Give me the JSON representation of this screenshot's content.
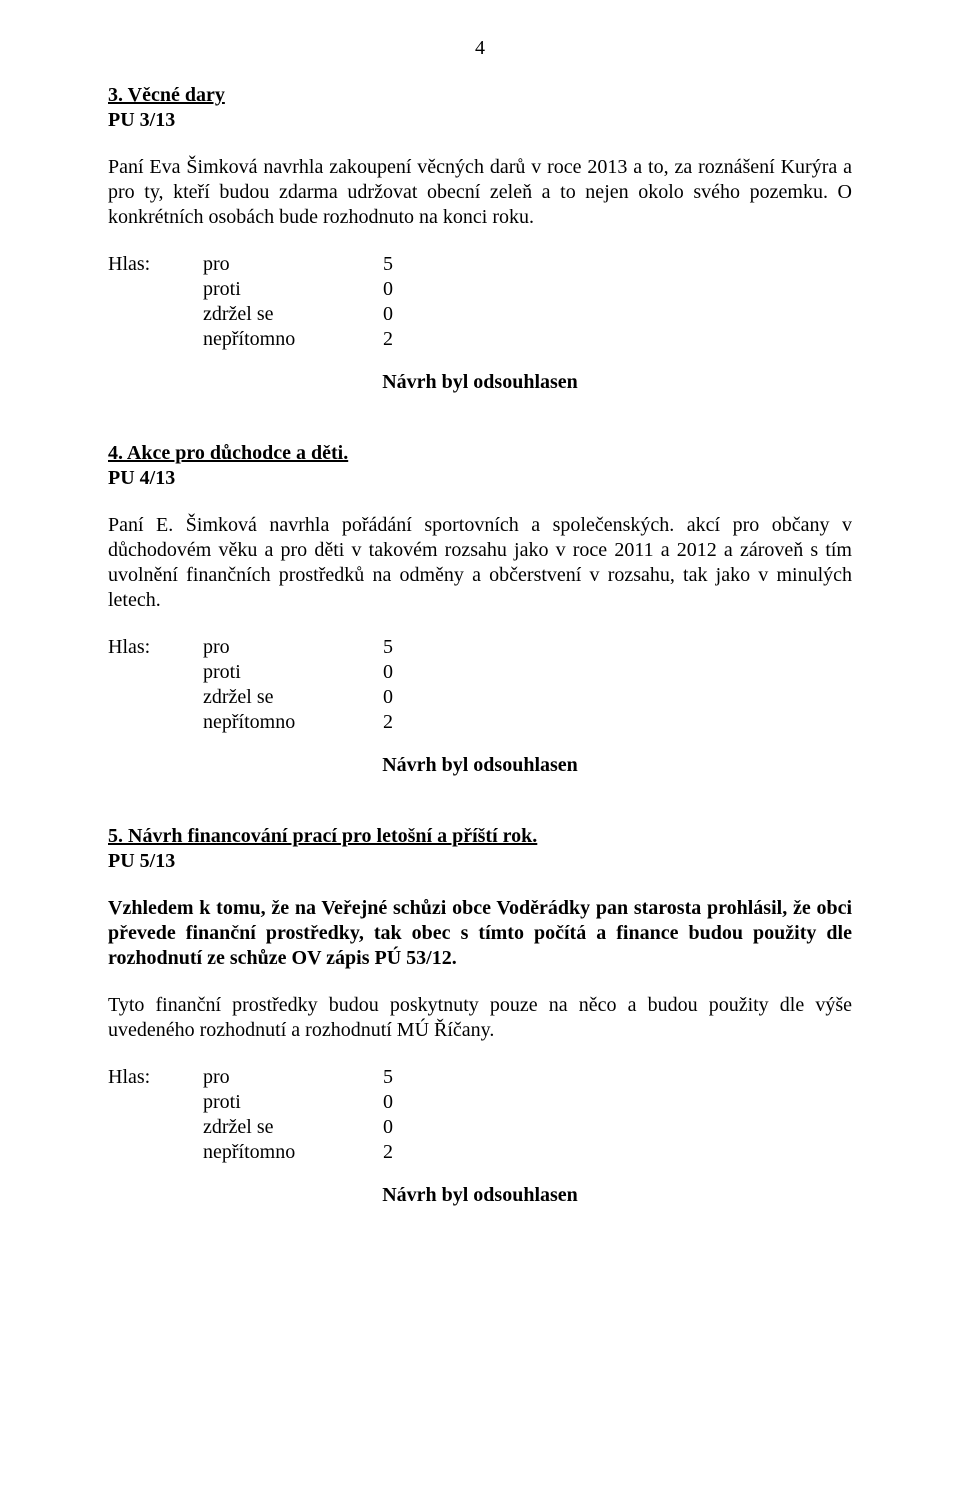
{
  "page_number": "4",
  "section3": {
    "title": "3. Věcné dary",
    "pu": "PU 3/13",
    "para": "Paní Eva Šimková navrhla zakoupení věcných darů v roce 2013 a to, za roznášení Kurýra a pro ty, kteří budou zdarma udržovat obecní zeleň a to nejen okolo svého pozemku. O konkrétních osobách bude rozhodnuto na konci roku."
  },
  "votes": {
    "label_hlas": "Hlas:",
    "rows": [
      {
        "label": "pro",
        "value": "5"
      },
      {
        "label": "proti",
        "value": "0"
      },
      {
        "label": "zdržel se",
        "value": "0"
      },
      {
        "label": "nepřítomno",
        "value": "2"
      }
    ]
  },
  "approved_text": "Návrh byl odsouhlasen",
  "section4": {
    "title": "4. Akce pro důchodce a děti.",
    "pu": "PU 4/13",
    "para": "Paní E. Šimková navrhla pořádání sportovních a společenských. akcí pro občany v důchodovém věku a pro děti v takovém rozsahu jako v roce 2011 a 2012 a zároveň s tím uvolnění finančních prostředků na odměny a občerstvení v rozsahu, tak jako v minulých letech."
  },
  "section5": {
    "title": "5. Návrh financování prací pro letošní a příští rok.",
    "pu": "PU 5/13",
    "bold_para": "Vzhledem k tomu, že na Veřejné schůzi obce Voděrádky pan starosta prohlásil, že obci převede finanční prostředky, tak obec s tímto počítá a finance budou použity dle rozhodnutí ze schůze OV zápis PÚ 53/12.",
    "para": "Tyto finanční prostředky budou poskytnuty pouze na něco a budou použity dle výše uvedeného rozhodnutí a rozhodnutí MÚ Říčany."
  }
}
